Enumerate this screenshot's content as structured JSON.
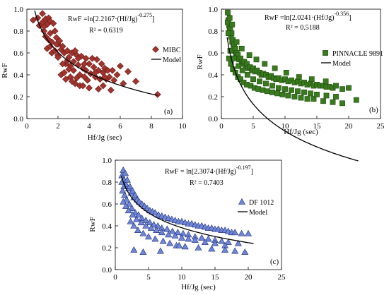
{
  "chart_data": [
    {
      "type": "scatter",
      "panel_label": "(a)",
      "xlabel": "Hf/Jg (sec)",
      "ylabel": "RwF",
      "xlim": [
        0,
        10
      ],
      "ylim": [
        0,
        1.0
      ],
      "xticks": [
        "0",
        "2",
        "4",
        "6",
        "8",
        "10"
      ],
      "yticks": [
        "0.0",
        "0.2",
        "0.4",
        "0.6",
        "0.8",
        "1.0"
      ],
      "equation": "RwF =ln[2.2167·(Hf/Jg)",
      "equation_exp": "-0.275",
      "equation_tail": "]",
      "r2": "R² = 0.6319",
      "legend": [
        {
          "name": "MIBC",
          "marker": "diamond"
        },
        {
          "name": "Model",
          "marker": "line"
        }
      ],
      "legend_position": "right",
      "colors": {
        "fill": "#a0342f",
        "stroke": "#6a1712"
      },
      "model": {
        "a": 2.2167,
        "b": -0.275,
        "x_range": [
          0.5,
          8.4
        ]
      },
      "series": [
        {
          "name": "MIBC",
          "marker": "diamond",
          "x": [
            0.4,
            0.7,
            0.8,
            1.0,
            1.0,
            1.1,
            1.2,
            1.3,
            1.3,
            1.4,
            1.5,
            1.5,
            1.6,
            1.6,
            1.7,
            1.8,
            1.8,
            1.9,
            2.0,
            2.0,
            2.1,
            2.2,
            2.2,
            2.3,
            2.4,
            2.5,
            2.5,
            2.6,
            2.7,
            2.8,
            2.8,
            2.9,
            3.0,
            3.0,
            3.1,
            3.2,
            3.3,
            3.4,
            3.4,
            3.5,
            3.6,
            3.7,
            3.8,
            3.8,
            3.9,
            4.0,
            4.1,
            4.2,
            4.3,
            4.4,
            4.5,
            4.6,
            4.7,
            4.8,
            4.9,
            5.0,
            5.1,
            5.2,
            5.3,
            5.5,
            5.6,
            5.8,
            6.0,
            6.2,
            6.5,
            7.0,
            1.2,
            1.5,
            2.0,
            2.4,
            2.7,
            3.2,
            3.6,
            4.0,
            4.4,
            4.9,
            5.4,
            1.9,
            2.3,
            2.9,
            3.3,
            4.6,
            5.0,
            8.4,
            1.1,
            1.4,
            2.6,
            3.1,
            3.7
          ],
          "y": [
            0.9,
            0.92,
            0.85,
            0.88,
            0.96,
            0.8,
            0.91,
            0.86,
            0.64,
            0.92,
            0.89,
            0.78,
            0.7,
            0.6,
            0.87,
            0.8,
            0.62,
            0.74,
            0.68,
            0.58,
            0.71,
            0.63,
            0.4,
            0.66,
            0.6,
            0.5,
            0.36,
            0.62,
            0.56,
            0.48,
            0.38,
            0.6,
            0.52,
            0.44,
            0.32,
            0.58,
            0.49,
            0.4,
            0.3,
            0.57,
            0.46,
            0.38,
            0.55,
            0.44,
            0.35,
            0.5,
            0.41,
            0.55,
            0.47,
            0.38,
            0.54,
            0.44,
            0.36,
            0.5,
            0.42,
            0.46,
            0.36,
            0.44,
            0.38,
            0.44,
            0.35,
            0.4,
            0.48,
            0.32,
            0.43,
            0.34,
            0.75,
            0.66,
            0.56,
            0.42,
            0.45,
            0.37,
            0.3,
            0.28,
            0.42,
            0.3,
            0.26,
            0.68,
            0.5,
            0.34,
            0.55,
            0.27,
            0.38,
            0.22,
            0.84,
            0.72,
            0.53,
            0.62,
            0.5
          ]
        }
      ]
    },
    {
      "type": "scatter",
      "panel_label": "(b)",
      "xlabel": "Hf/Jg (sec)",
      "ylabel": "RwF",
      "xlim": [
        0,
        25
      ],
      "ylim": [
        0,
        1.0
      ],
      "xticks": [
        "0",
        "5",
        "10",
        "15",
        "20",
        "25"
      ],
      "yticks": [
        "0.0",
        "0.2",
        "0.4",
        "0.6",
        "0.8",
        "1.0"
      ],
      "equation": "RwF =ln[2.0241·(Hf/Jg)",
      "equation_exp": "-0.356",
      "equation_tail": "]",
      "r2": "R² = 0.5188",
      "legend": [
        {
          "name": "PINNACLE 9891",
          "marker": "square"
        },
        {
          "name": "Model",
          "marker": "line"
        }
      ],
      "legend_position": "right",
      "colors": {
        "fill": "#3a7a1f",
        "stroke": "#1c4a0a"
      },
      "model": {
        "a": 2.0241,
        "b": -0.356,
        "x_range": [
          0.9,
          21.5
        ]
      },
      "series": [
        {
          "name": "PINNACLE 9891",
          "marker": "square",
          "x": [
            1.0,
            1.1,
            1.2,
            1.3,
            1.4,
            1.5,
            1.6,
            1.7,
            1.8,
            1.9,
            2.0,
            2.1,
            2.2,
            2.3,
            2.4,
            2.5,
            2.6,
            2.8,
            3.0,
            3.2,
            3.4,
            3.6,
            3.8,
            4.0,
            4.2,
            4.5,
            4.8,
            5.0,
            5.3,
            5.6,
            6.0,
            6.3,
            6.6,
            7.0,
            7.4,
            7.8,
            8.2,
            8.6,
            9.0,
            9.5,
            10.0,
            10.5,
            11.0,
            11.5,
            12.0,
            12.5,
            13.0,
            13.5,
            14.0,
            14.5,
            15.0,
            15.5,
            16.0,
            16.5,
            17.0,
            17.5,
            18.0,
            19.0,
            20.0,
            21.2,
            1.2,
            1.5,
            1.8,
            2.2,
            2.6,
            3.0,
            3.5,
            4.0,
            4.6,
            5.2,
            5.8,
            6.5,
            7.2,
            8.0,
            8.8,
            9.6,
            10.5,
            11.5,
            12.5,
            13.5,
            14.5,
            16.0,
            17.5,
            19.0,
            1.4,
            2.0,
            2.7,
            3.3,
            4.1,
            5.0,
            6.0,
            7.0,
            8.0,
            9.0,
            10.0,
            11.0,
            12.0,
            13.0,
            14.0,
            15.0,
            16.5,
            18.0,
            1.0,
            1.3,
            1.7,
            2.4,
            3.2,
            4.4,
            5.5,
            6.8,
            8.4,
            10.2,
            12.2,
            14.2,
            16.4,
            1.1
          ],
          "y": [
            0.97,
            0.9,
            0.85,
            0.8,
            0.82,
            0.75,
            0.78,
            0.7,
            0.72,
            0.66,
            0.68,
            0.62,
            0.64,
            0.58,
            0.6,
            0.56,
            0.58,
            0.54,
            0.55,
            0.52,
            0.5,
            0.52,
            0.48,
            0.5,
            0.46,
            0.47,
            0.44,
            0.46,
            0.43,
            0.44,
            0.42,
            0.4,
            0.41,
            0.4,
            0.38,
            0.39,
            0.37,
            0.36,
            0.37,
            0.35,
            0.36,
            0.34,
            0.35,
            0.33,
            0.34,
            0.32,
            0.33,
            0.31,
            0.32,
            0.3,
            0.31,
            0.3,
            0.3,
            0.29,
            0.29,
            0.28,
            0.3,
            0.27,
            0.28,
            0.17,
            0.55,
            0.5,
            0.45,
            0.42,
            0.38,
            0.36,
            0.33,
            0.31,
            0.3,
            0.28,
            0.27,
            0.26,
            0.25,
            0.24,
            0.23,
            0.22,
            0.21,
            0.2,
            0.19,
            0.18,
            0.18,
            0.16,
            0.15,
            0.14,
            0.62,
            0.55,
            0.48,
            0.44,
            0.4,
            0.36,
            0.34,
            0.32,
            0.3,
            0.28,
            0.27,
            0.26,
            0.25,
            0.24,
            0.23,
            0.22,
            0.21,
            0.2,
            0.88,
            0.92,
            0.86,
            0.7,
            0.64,
            0.58,
            0.54,
            0.5,
            0.46,
            0.42,
            0.38,
            0.36,
            0.34,
            0.78
          ]
        }
      ]
    },
    {
      "type": "scatter",
      "panel_label": "(c)",
      "xlabel": "Hf/Jg (sec)",
      "ylabel": "RwF",
      "xlim": [
        0,
        25
      ],
      "ylim": [
        0,
        1.0
      ],
      "xticks": [
        "0",
        "5",
        "10",
        "15",
        "20",
        "25"
      ],
      "yticks": [
        "0.0",
        "0.2",
        "0.4",
        "0.6",
        "0.8",
        "1.0"
      ],
      "equation": "RwF = ln[2.3074·(Hf/Jg)",
      "equation_exp": "-0.197",
      "equation_tail": "]",
      "r2": "R² = 0.7403",
      "legend": [
        {
          "name": "DF 1012",
          "marker": "triangle"
        },
        {
          "name": "Model",
          "marker": "line"
        }
      ],
      "legend_position": "right",
      "colors": {
        "fill": "#6f86d6",
        "stroke": "#1f2f7a"
      },
      "model": {
        "a": 2.3074,
        "b": -0.197,
        "x_range": [
          0.9,
          20.8
        ]
      },
      "series": [
        {
          "name": "DF 1012",
          "marker": "triangle",
          "x": [
            1.0,
            1.2,
            1.3,
            1.5,
            1.6,
            1.8,
            2.0,
            2.2,
            2.4,
            2.6,
            2.8,
            3.0,
            3.3,
            3.6,
            4.0,
            4.4,
            4.8,
            5.2,
            5.6,
            6.0,
            6.5,
            7.0,
            7.5,
            8.0,
            8.5,
            9.0,
            9.5,
            10.0,
            10.5,
            11.0,
            11.5,
            12.0,
            12.5,
            13.0,
            13.5,
            14.0,
            14.5,
            15.0,
            15.5,
            16.0,
            16.5,
            17.0,
            17.5,
            18.0,
            19.0,
            20.0,
            1.1,
            1.4,
            1.7,
            2.1,
            2.5,
            3.0,
            3.5,
            4.0,
            4.6,
            5.2,
            5.8,
            6.4,
            7.0,
            7.8,
            8.6,
            9.4,
            10.2,
            11.0,
            12.0,
            13.0,
            14.0,
            15.0,
            16.0,
            17.0,
            18.5,
            1.2,
            1.6,
            2.0,
            2.6,
            3.2,
            3.9,
            4.6,
            5.4,
            6.2,
            7.0,
            8.0,
            9.0,
            10.0,
            11.0,
            12.0,
            13.5,
            15.0,
            16.5,
            1.0,
            1.3,
            2.3,
            2.8,
            3.4,
            4.2,
            5.0,
            6.0,
            7.2,
            8.2,
            9.2,
            10.5,
            12.5,
            14.5,
            16.5,
            18.0,
            19.5,
            2.8,
            4.2,
            6.8,
            9.6
          ],
          "y": [
            0.86,
            0.91,
            0.82,
            0.88,
            0.78,
            0.82,
            0.74,
            0.76,
            0.7,
            0.72,
            0.66,
            0.68,
            0.64,
            0.62,
            0.6,
            0.58,
            0.56,
            0.54,
            0.53,
            0.52,
            0.5,
            0.49,
            0.48,
            0.47,
            0.46,
            0.45,
            0.44,
            0.44,
            0.43,
            0.42,
            0.42,
            0.41,
            0.4,
            0.4,
            0.39,
            0.38,
            0.38,
            0.37,
            0.37,
            0.36,
            0.36,
            0.35,
            0.34,
            0.34,
            0.33,
            0.33,
            0.72,
            0.68,
            0.64,
            0.6,
            0.56,
            0.52,
            0.5,
            0.47,
            0.45,
            0.43,
            0.41,
            0.4,
            0.38,
            0.37,
            0.35,
            0.34,
            0.33,
            0.32,
            0.3,
            0.29,
            0.28,
            0.27,
            0.26,
            0.25,
            0.24,
            0.62,
            0.58,
            0.54,
            0.5,
            0.46,
            0.43,
            0.4,
            0.38,
            0.36,
            0.34,
            0.32,
            0.31,
            0.29,
            0.28,
            0.27,
            0.25,
            0.24,
            0.22,
            0.8,
            0.76,
            0.44,
            0.4,
            0.36,
            0.33,
            0.3,
            0.28,
            0.26,
            0.24,
            0.22,
            0.21,
            0.2,
            0.19,
            0.18,
            0.17,
            0.16,
            0.18,
            0.16,
            0.17,
            0.22
          ]
        }
      ]
    }
  ]
}
